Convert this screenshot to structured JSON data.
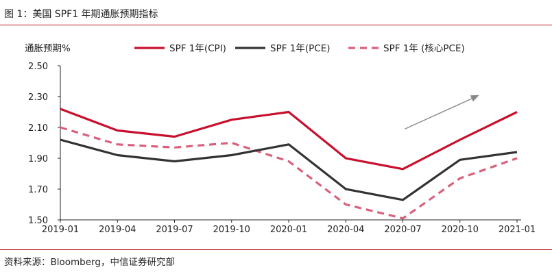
{
  "figure": {
    "title": "图 1：美国 SPF1 年期通胀预期指标",
    "source": "资料来源：Bloomberg，中信证券研究部"
  },
  "chart_data": {
    "type": "line",
    "title": "图 1：美国 SPF1 年期通胀预期指标",
    "ylabel": "通胀预期%",
    "xlabel": "",
    "categories": [
      "2019-01",
      "2019-04",
      "2019-07",
      "2019-10",
      "2020-01",
      "2020-04",
      "2020-07",
      "2020-10",
      "2021-01"
    ],
    "ylim": [
      1.5,
      2.5
    ],
    "yticks": [
      "1.50",
      "1.70",
      "1.90",
      "2.10",
      "2.30",
      "2.50"
    ],
    "grid": false,
    "legend_position": "top",
    "series": [
      {
        "name": "SPF 1年(CPI)",
        "color": "#c8102e",
        "dashed": false,
        "values": [
          2.22,
          2.08,
          2.04,
          2.15,
          2.2,
          1.9,
          1.83,
          2.02,
          2.2
        ]
      },
      {
        "name": "SPF 1年(PCE)",
        "color": "#333333",
        "dashed": false,
        "values": [
          2.02,
          1.92,
          1.88,
          1.92,
          1.99,
          1.7,
          1.63,
          1.89,
          1.94
        ]
      },
      {
        "name": "SPF 1年 (核心PCE)",
        "color": "#d9607c",
        "dashed": true,
        "values": [
          2.1,
          1.99,
          1.97,
          2.0,
          1.88,
          1.6,
          1.51,
          1.77,
          1.9
        ]
      }
    ],
    "annotation": {
      "type": "arrow",
      "from": [
        "2020-07",
        2.09
      ],
      "to": [
        "2020-10",
        2.31
      ],
      "color": "#888888"
    }
  }
}
